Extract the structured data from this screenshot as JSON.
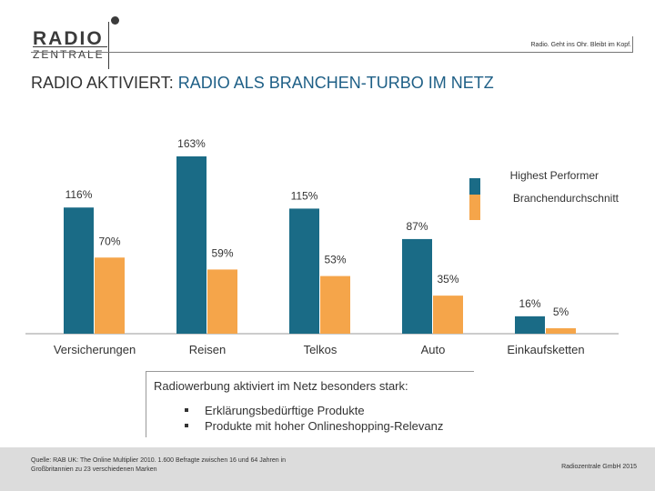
{
  "header": {
    "logo_top": "RADIO",
    "logo_bottom": "ZENTRALE",
    "tagline": "Radio. Geht ins Ohr. Bleibt im Kopf."
  },
  "title": {
    "prefix": "RADIO AKTIVIERT: ",
    "accent": "RADIO ALS BRANCHEN-TURBO IM NETZ"
  },
  "chart_data": {
    "type": "bar",
    "categories": [
      "Versicherungen",
      "Reisen",
      "Telkos",
      "Auto",
      "Einkaufsketten"
    ],
    "series": [
      {
        "name": "Highest Performer",
        "values": [
          116,
          163,
          115,
          87,
          16
        ],
        "labels": [
          "116%",
          "163%",
          "115%",
          "87%",
          "16%"
        ],
        "color": "#1a6b86"
      },
      {
        "name": "Branchendurchschnitt",
        "values": [
          70,
          59,
          53,
          35,
          5
        ],
        "labels": [
          "70%",
          "59%",
          "53%",
          "35%",
          "5%"
        ],
        "color": "#f5a54a"
      }
    ],
    "ylim": [
      0,
      163
    ],
    "grid": false,
    "legend": "top-right"
  },
  "note": {
    "text": "Radiowerbung aktiviert im Netz besonders stark:",
    "items": [
      "Erklärungsbedürftige Produkte",
      "Produkte mit hoher Onlineshopping-Relevanz"
    ]
  },
  "footer": {
    "source": "Quelle: RAB UK: The Online Multiplier 2010. 1.600 Befragte zwischen 16 und 64 Jahren in Großbritannien zu 23 verschiedenen Marken",
    "copyright": "Radiozentrale GmbH 2015"
  }
}
